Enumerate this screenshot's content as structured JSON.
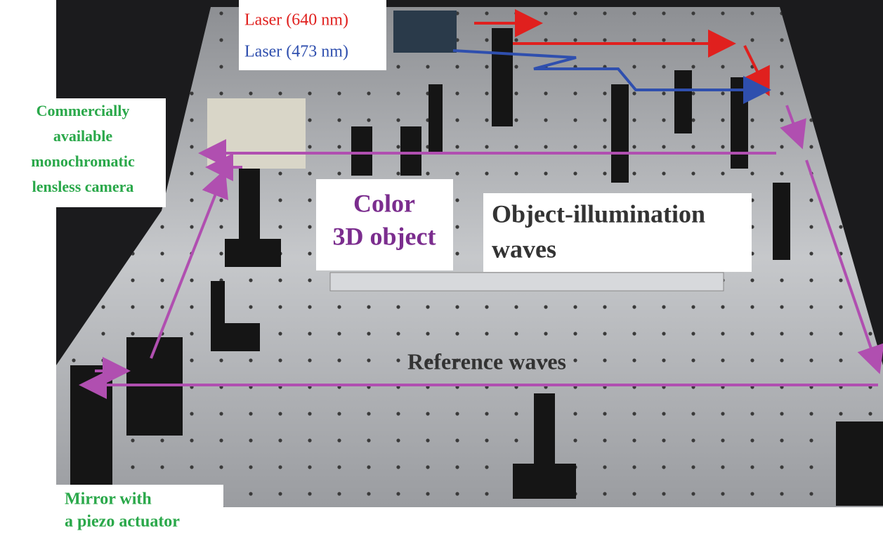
{
  "labels": {
    "laser_red": "Laser (640 nm)",
    "laser_blue": "Laser (473 nm)",
    "camera": [
      "Commercially",
      "available",
      "monochromatic",
      "lensless camera"
    ],
    "object": [
      "Color",
      "3D object"
    ],
    "illumination": [
      "Object-illumination",
      "waves"
    ],
    "reference": "Reference waves",
    "mirror": [
      "Mirror with",
      "a piezo actuator"
    ]
  }
}
